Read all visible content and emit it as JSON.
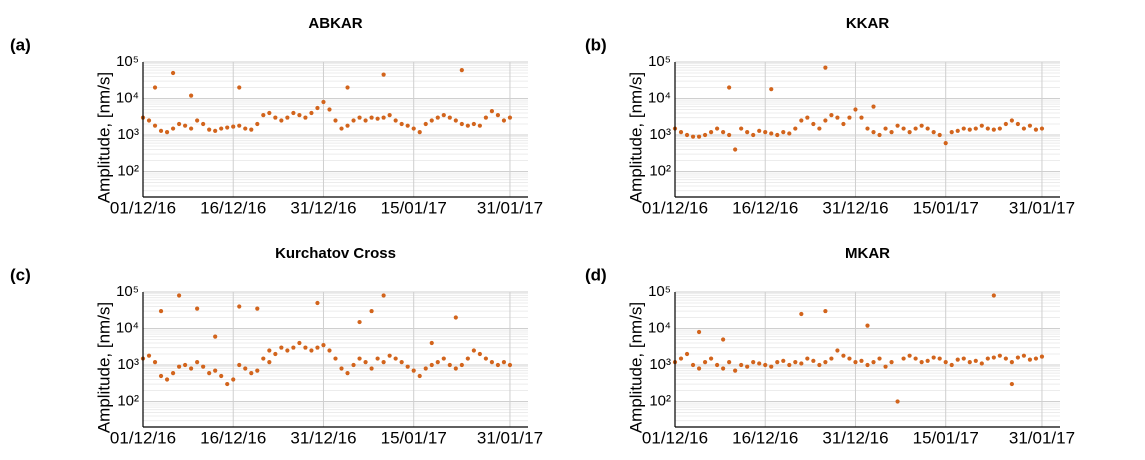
{
  "chart_data": [
    {
      "type": "scatter",
      "label": "(a)",
      "title": "ABKAR",
      "ylabel": "Amplitude, [nm/s]",
      "color": "#d2641c",
      "log_y": true,
      "grid": true,
      "xlim": [
        "2016-12-01",
        "2017-02-03"
      ],
      "xticks": [
        {
          "value": "2016-12-01",
          "label": "01/12/16"
        },
        {
          "value": "2016-12-16",
          "label": "16/12/16"
        },
        {
          "value": "2016-12-31",
          "label": "31/12/16"
        },
        {
          "value": "2017-01-15",
          "label": "15/01/17"
        },
        {
          "value": "2017-01-31",
          "label": "31/01/17"
        }
      ],
      "ylim": [
        20,
        100000
      ],
      "yticks": [
        {
          "value": 100,
          "label": "10²"
        },
        {
          "value": 1000,
          "label": "10³"
        },
        {
          "value": 10000,
          "label": "10⁴"
        },
        {
          "value": 100000,
          "label": "10⁵"
        }
      ],
      "x": [
        "2016-12-01",
        "2016-12-02",
        "2016-12-03",
        "2016-12-04",
        "2016-12-05",
        "2016-12-06",
        "2016-12-07",
        "2016-12-08",
        "2016-12-09",
        "2016-12-10",
        "2016-12-11",
        "2016-12-12",
        "2016-12-13",
        "2016-12-14",
        "2016-12-15",
        "2016-12-16",
        "2016-12-17",
        "2016-12-18",
        "2016-12-19",
        "2016-12-20",
        "2016-12-21",
        "2016-12-22",
        "2016-12-23",
        "2016-12-24",
        "2016-12-25",
        "2016-12-26",
        "2016-12-27",
        "2016-12-28",
        "2016-12-29",
        "2016-12-30",
        "2016-12-31",
        "2017-01-01",
        "2017-01-02",
        "2017-01-03",
        "2017-01-04",
        "2017-01-05",
        "2017-01-06",
        "2017-01-07",
        "2017-01-08",
        "2017-01-09",
        "2017-01-10",
        "2017-01-11",
        "2017-01-12",
        "2017-01-13",
        "2017-01-14",
        "2017-01-15",
        "2017-01-16",
        "2017-01-17",
        "2017-01-18",
        "2017-01-19",
        "2017-01-20",
        "2017-01-21",
        "2017-01-22",
        "2017-01-23",
        "2017-01-24",
        "2017-01-25",
        "2017-01-26",
        "2017-01-27",
        "2017-01-28",
        "2017-01-29",
        "2017-01-30",
        "2017-01-31",
        "2016-12-03",
        "2016-12-06",
        "2016-12-09",
        "2016-12-17",
        "2017-01-04",
        "2017-01-10",
        "2017-01-23"
      ],
      "values": [
        3000,
        2500,
        1800,
        1300,
        1200,
        1500,
        2000,
        1800,
        1500,
        2500,
        2000,
        1400,
        1300,
        1500,
        1600,
        1700,
        1800,
        1500,
        1400,
        2000,
        3500,
        4000,
        3000,
        2500,
        3000,
        4000,
        3500,
        3000,
        4000,
        5500,
        8000,
        5000,
        2500,
        1500,
        1800,
        2500,
        3000,
        2500,
        3000,
        2800,
        3000,
        3500,
        2500,
        2000,
        1800,
        1500,
        1200,
        2000,
        2500,
        3000,
        3500,
        3000,
        2500,
        2000,
        1800,
        2000,
        1800,
        3000,
        4500,
        3500,
        2500,
        3000,
        20000,
        50000,
        12000,
        20000,
        20000,
        45000,
        60000
      ]
    },
    {
      "type": "scatter",
      "label": "(b)",
      "title": "KKAR",
      "ylabel": "Amplitude, [nm/s]",
      "color": "#d2641c",
      "log_y": true,
      "grid": true,
      "xlim": [
        "2016-12-01",
        "2017-02-03"
      ],
      "xticks": [
        {
          "value": "2016-12-01",
          "label": "01/12/16"
        },
        {
          "value": "2016-12-16",
          "label": "16/12/16"
        },
        {
          "value": "2016-12-31",
          "label": "31/12/16"
        },
        {
          "value": "2017-01-15",
          "label": "15/01/17"
        },
        {
          "value": "2017-01-31",
          "label": "31/01/17"
        }
      ],
      "ylim": [
        20,
        100000
      ],
      "yticks": [
        {
          "value": 100,
          "label": "10²"
        },
        {
          "value": 1000,
          "label": "10³"
        },
        {
          "value": 10000,
          "label": "10⁴"
        },
        {
          "value": 100000,
          "label": "10⁵"
        }
      ],
      "x": [
        "2016-12-01",
        "2016-12-02",
        "2016-12-03",
        "2016-12-04",
        "2016-12-05",
        "2016-12-06",
        "2016-12-07",
        "2016-12-08",
        "2016-12-09",
        "2016-12-10",
        "2016-12-11",
        "2016-12-12",
        "2016-12-13",
        "2016-12-14",
        "2016-12-15",
        "2016-12-16",
        "2016-12-17",
        "2016-12-18",
        "2016-12-19",
        "2016-12-20",
        "2016-12-21",
        "2016-12-22",
        "2016-12-23",
        "2016-12-24",
        "2016-12-25",
        "2016-12-26",
        "2016-12-27",
        "2016-12-28",
        "2016-12-29",
        "2016-12-30",
        "2016-12-31",
        "2017-01-01",
        "2017-01-02",
        "2017-01-03",
        "2017-01-04",
        "2017-01-05",
        "2017-01-06",
        "2017-01-07",
        "2017-01-08",
        "2017-01-09",
        "2017-01-10",
        "2017-01-11",
        "2017-01-12",
        "2017-01-13",
        "2017-01-14",
        "2017-01-15",
        "2017-01-16",
        "2017-01-17",
        "2017-01-18",
        "2017-01-19",
        "2017-01-20",
        "2017-01-21",
        "2017-01-22",
        "2017-01-23",
        "2017-01-24",
        "2017-01-25",
        "2017-01-26",
        "2017-01-27",
        "2017-01-28",
        "2017-01-29",
        "2017-01-30",
        "2017-01-31",
        "2016-12-10",
        "2016-12-17",
        "2016-12-26",
        "2017-01-03"
      ],
      "values": [
        1500,
        1200,
        1000,
        900,
        900,
        1000,
        1200,
        1500,
        1200,
        1000,
        400,
        1500,
        1200,
        1000,
        1300,
        1200,
        1100,
        1000,
        1200,
        1100,
        1500,
        2500,
        3000,
        2000,
        1500,
        2500,
        3500,
        3000,
        2000,
        3000,
        5000,
        3000,
        1500,
        1200,
        1000,
        1500,
        1200,
        1800,
        1500,
        1200,
        1500,
        1800,
        1500,
        1200,
        1000,
        600,
        1200,
        1300,
        1500,
        1400,
        1500,
        1800,
        1500,
        1400,
        1500,
        2000,
        2500,
        2000,
        1500,
        1800,
        1400,
        1500,
        20000,
        18000,
        70000,
        6000
      ]
    },
    {
      "type": "scatter",
      "label": "(c)",
      "title": "Kurchatov Cross",
      "ylabel": "Amplitude, [nm/s]",
      "color": "#d2641c",
      "log_y": true,
      "grid": true,
      "xlim": [
        "2016-12-01",
        "2017-02-03"
      ],
      "xticks": [
        {
          "value": "2016-12-01",
          "label": "01/12/16"
        },
        {
          "value": "2016-12-16",
          "label": "16/12/16"
        },
        {
          "value": "2016-12-31",
          "label": "31/12/16"
        },
        {
          "value": "2017-01-15",
          "label": "15/01/17"
        },
        {
          "value": "2017-01-31",
          "label": "31/01/17"
        }
      ],
      "ylim": [
        20,
        100000
      ],
      "yticks": [
        {
          "value": 100,
          "label": "10²"
        },
        {
          "value": 1000,
          "label": "10³"
        },
        {
          "value": 10000,
          "label": "10⁴"
        },
        {
          "value": 100000,
          "label": "10⁵"
        }
      ],
      "x": [
        "2016-12-01",
        "2016-12-02",
        "2016-12-03",
        "2016-12-04",
        "2016-12-05",
        "2016-12-06",
        "2016-12-07",
        "2016-12-08",
        "2016-12-09",
        "2016-12-10",
        "2016-12-11",
        "2016-12-12",
        "2016-12-13",
        "2016-12-14",
        "2016-12-15",
        "2016-12-16",
        "2016-12-17",
        "2016-12-18",
        "2016-12-19",
        "2016-12-20",
        "2016-12-21",
        "2016-12-22",
        "2016-12-23",
        "2016-12-24",
        "2016-12-25",
        "2016-12-26",
        "2016-12-27",
        "2016-12-28",
        "2016-12-29",
        "2016-12-30",
        "2016-12-31",
        "2017-01-01",
        "2017-01-02",
        "2017-01-03",
        "2017-01-04",
        "2017-01-05",
        "2017-01-06",
        "2017-01-07",
        "2017-01-08",
        "2017-01-09",
        "2017-01-10",
        "2017-01-11",
        "2017-01-12",
        "2017-01-13",
        "2017-01-14",
        "2017-01-15",
        "2017-01-16",
        "2017-01-17",
        "2017-01-18",
        "2017-01-19",
        "2017-01-20",
        "2017-01-21",
        "2017-01-22",
        "2017-01-23",
        "2017-01-24",
        "2017-01-25",
        "2017-01-26",
        "2017-01-27",
        "2017-01-28",
        "2017-01-29",
        "2017-01-30",
        "2017-01-31",
        "2016-12-04",
        "2016-12-07",
        "2016-12-10",
        "2016-12-13",
        "2016-12-17",
        "2016-12-20",
        "2016-12-22",
        "2016-12-30",
        "2017-01-06",
        "2017-01-08",
        "2017-01-10",
        "2017-01-18",
        "2017-01-22"
      ],
      "values": [
        1500,
        1800,
        1200,
        500,
        400,
        600,
        900,
        1000,
        800,
        1200,
        900,
        600,
        700,
        500,
        300,
        400,
        1000,
        800,
        600,
        700,
        1500,
        1200,
        2000,
        3000,
        2500,
        3000,
        4000,
        3000,
        2500,
        3000,
        3500,
        2500,
        1500,
        800,
        600,
        1000,
        1500,
        1200,
        800,
        1500,
        1200,
        1800,
        1500,
        1200,
        900,
        700,
        500,
        800,
        1000,
        1200,
        1500,
        1000,
        800,
        1000,
        1500,
        2500,
        2000,
        1500,
        1200,
        1000,
        1200,
        1000,
        30000,
        80000,
        35000,
        6000,
        40000,
        35000,
        2500,
        50000,
        15000,
        30000,
        80000,
        4000,
        20000
      ]
    },
    {
      "type": "scatter",
      "label": "(d)",
      "title": "MKAR",
      "ylabel": "Amplitude, [nm/s]",
      "color": "#d2641c",
      "log_y": true,
      "grid": true,
      "xlim": [
        "2016-12-01",
        "2017-02-03"
      ],
      "xticks": [
        {
          "value": "2016-12-01",
          "label": "01/12/16"
        },
        {
          "value": "2016-12-16",
          "label": "16/12/16"
        },
        {
          "value": "2016-12-31",
          "label": "31/12/16"
        },
        {
          "value": "2017-01-15",
          "label": "15/01/17"
        },
        {
          "value": "2017-01-31",
          "label": "31/01/17"
        }
      ],
      "ylim": [
        20,
        100000
      ],
      "yticks": [
        {
          "value": 100,
          "label": "10²"
        },
        {
          "value": 1000,
          "label": "10³"
        },
        {
          "value": 10000,
          "label": "10⁴"
        },
        {
          "value": 100000,
          "label": "10⁵"
        }
      ],
      "x": [
        "2016-12-01",
        "2016-12-02",
        "2016-12-03",
        "2016-12-04",
        "2016-12-05",
        "2016-12-06",
        "2016-12-07",
        "2016-12-08",
        "2016-12-09",
        "2016-12-10",
        "2016-12-11",
        "2016-12-12",
        "2016-12-13",
        "2016-12-14",
        "2016-12-15",
        "2016-12-16",
        "2016-12-17",
        "2016-12-18",
        "2016-12-19",
        "2016-12-20",
        "2016-12-21",
        "2016-12-22",
        "2016-12-23",
        "2016-12-24",
        "2016-12-25",
        "2016-12-26",
        "2016-12-27",
        "2016-12-28",
        "2016-12-29",
        "2016-12-30",
        "2016-12-31",
        "2017-01-01",
        "2017-01-02",
        "2017-01-03",
        "2017-01-04",
        "2017-01-05",
        "2017-01-06",
        "2017-01-07",
        "2017-01-08",
        "2017-01-09",
        "2017-01-10",
        "2017-01-11",
        "2017-01-12",
        "2017-01-13",
        "2017-01-14",
        "2017-01-15",
        "2017-01-16",
        "2017-01-17",
        "2017-01-18",
        "2017-01-19",
        "2017-01-20",
        "2017-01-21",
        "2017-01-22",
        "2017-01-23",
        "2017-01-24",
        "2017-01-25",
        "2017-01-26",
        "2017-01-27",
        "2017-01-28",
        "2017-01-29",
        "2017-01-30",
        "2017-01-31",
        "2016-12-05",
        "2016-12-09",
        "2016-12-22",
        "2016-12-26",
        "2017-01-02",
        "2017-01-23",
        "2017-01-26"
      ],
      "values": [
        1200,
        1500,
        2000,
        1000,
        800,
        1200,
        1500,
        1000,
        800,
        1200,
        700,
        1000,
        900,
        1200,
        1100,
        1000,
        900,
        1200,
        1300,
        1000,
        1200,
        1100,
        1500,
        1300,
        1000,
        1200,
        1500,
        2500,
        1800,
        1500,
        1200,
        1300,
        1000,
        1200,
        1500,
        900,
        1200,
        100,
        1500,
        1800,
        1500,
        1200,
        1300,
        1600,
        1500,
        1200,
        1000,
        1400,
        1500,
        1200,
        1300,
        1100,
        1500,
        1600,
        1800,
        1500,
        1200,
        1600,
        1800,
        1400,
        1500,
        1700,
        8000,
        5000,
        25000,
        30000,
        12000,
        80000,
        300
      ]
    }
  ]
}
